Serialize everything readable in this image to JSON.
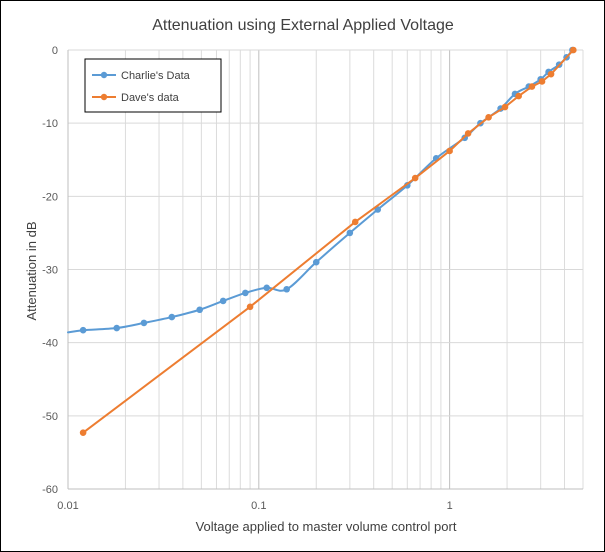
{
  "chart_data": {
    "type": "line",
    "title": "Attenuation using External Applied Voltage",
    "xlabel": "Voltage applied to master volume control port",
    "ylabel": "Attenuation in dB",
    "xscale": "log",
    "xlim": [
      0.01,
      5
    ],
    "ylim": [
      -60,
      0
    ],
    "x_ticks": [
      0.01,
      0.1,
      1
    ],
    "x_tick_labels": [
      "0.01",
      "0.1",
      "1"
    ],
    "y_ticks": [
      0,
      -10,
      -20,
      -30,
      -40,
      -50,
      -60
    ],
    "y_tick_labels": [
      "0",
      "-10",
      "-20",
      "-30",
      "-40",
      "-50",
      "-60"
    ],
    "grid": true,
    "legend_position": "top-left",
    "series": [
      {
        "name": "Charlie's Data",
        "color": "#5B9BD5",
        "smooth": true,
        "extend_to_xmin": -38.6,
        "x": [
          0.012,
          0.018,
          0.025,
          0.035,
          0.049,
          0.065,
          0.085,
          0.11,
          0.14,
          0.2,
          0.3,
          0.42,
          0.6,
          0.85,
          1.2,
          1.45,
          1.85,
          2.2,
          2.6,
          3.0,
          3.3,
          3.75,
          4.1,
          4.4
        ],
        "y": [
          -38.3,
          -38.0,
          -37.3,
          -36.5,
          -35.5,
          -34.3,
          -33.2,
          -32.5,
          -32.7,
          -29.0,
          -25.0,
          -21.8,
          -18.5,
          -14.8,
          -12.0,
          -10.0,
          -8.0,
          -6.0,
          -5.0,
          -4.0,
          -3.0,
          -2.0,
          -1.0,
          0.0
        ]
      },
      {
        "name": "Dave's data",
        "color": "#ED7D31",
        "smooth": false,
        "x": [
          0.012,
          0.09,
          0.32,
          0.66,
          1.0,
          1.25,
          1.6,
          1.95,
          2.3,
          2.7,
          3.05,
          3.4,
          4.45
        ],
        "y": [
          -52.3,
          -35.1,
          -23.5,
          -17.5,
          -13.8,
          -11.4,
          -9.2,
          -7.8,
          -6.3,
          -5.0,
          -4.3,
          -3.3,
          0.0
        ]
      }
    ]
  }
}
